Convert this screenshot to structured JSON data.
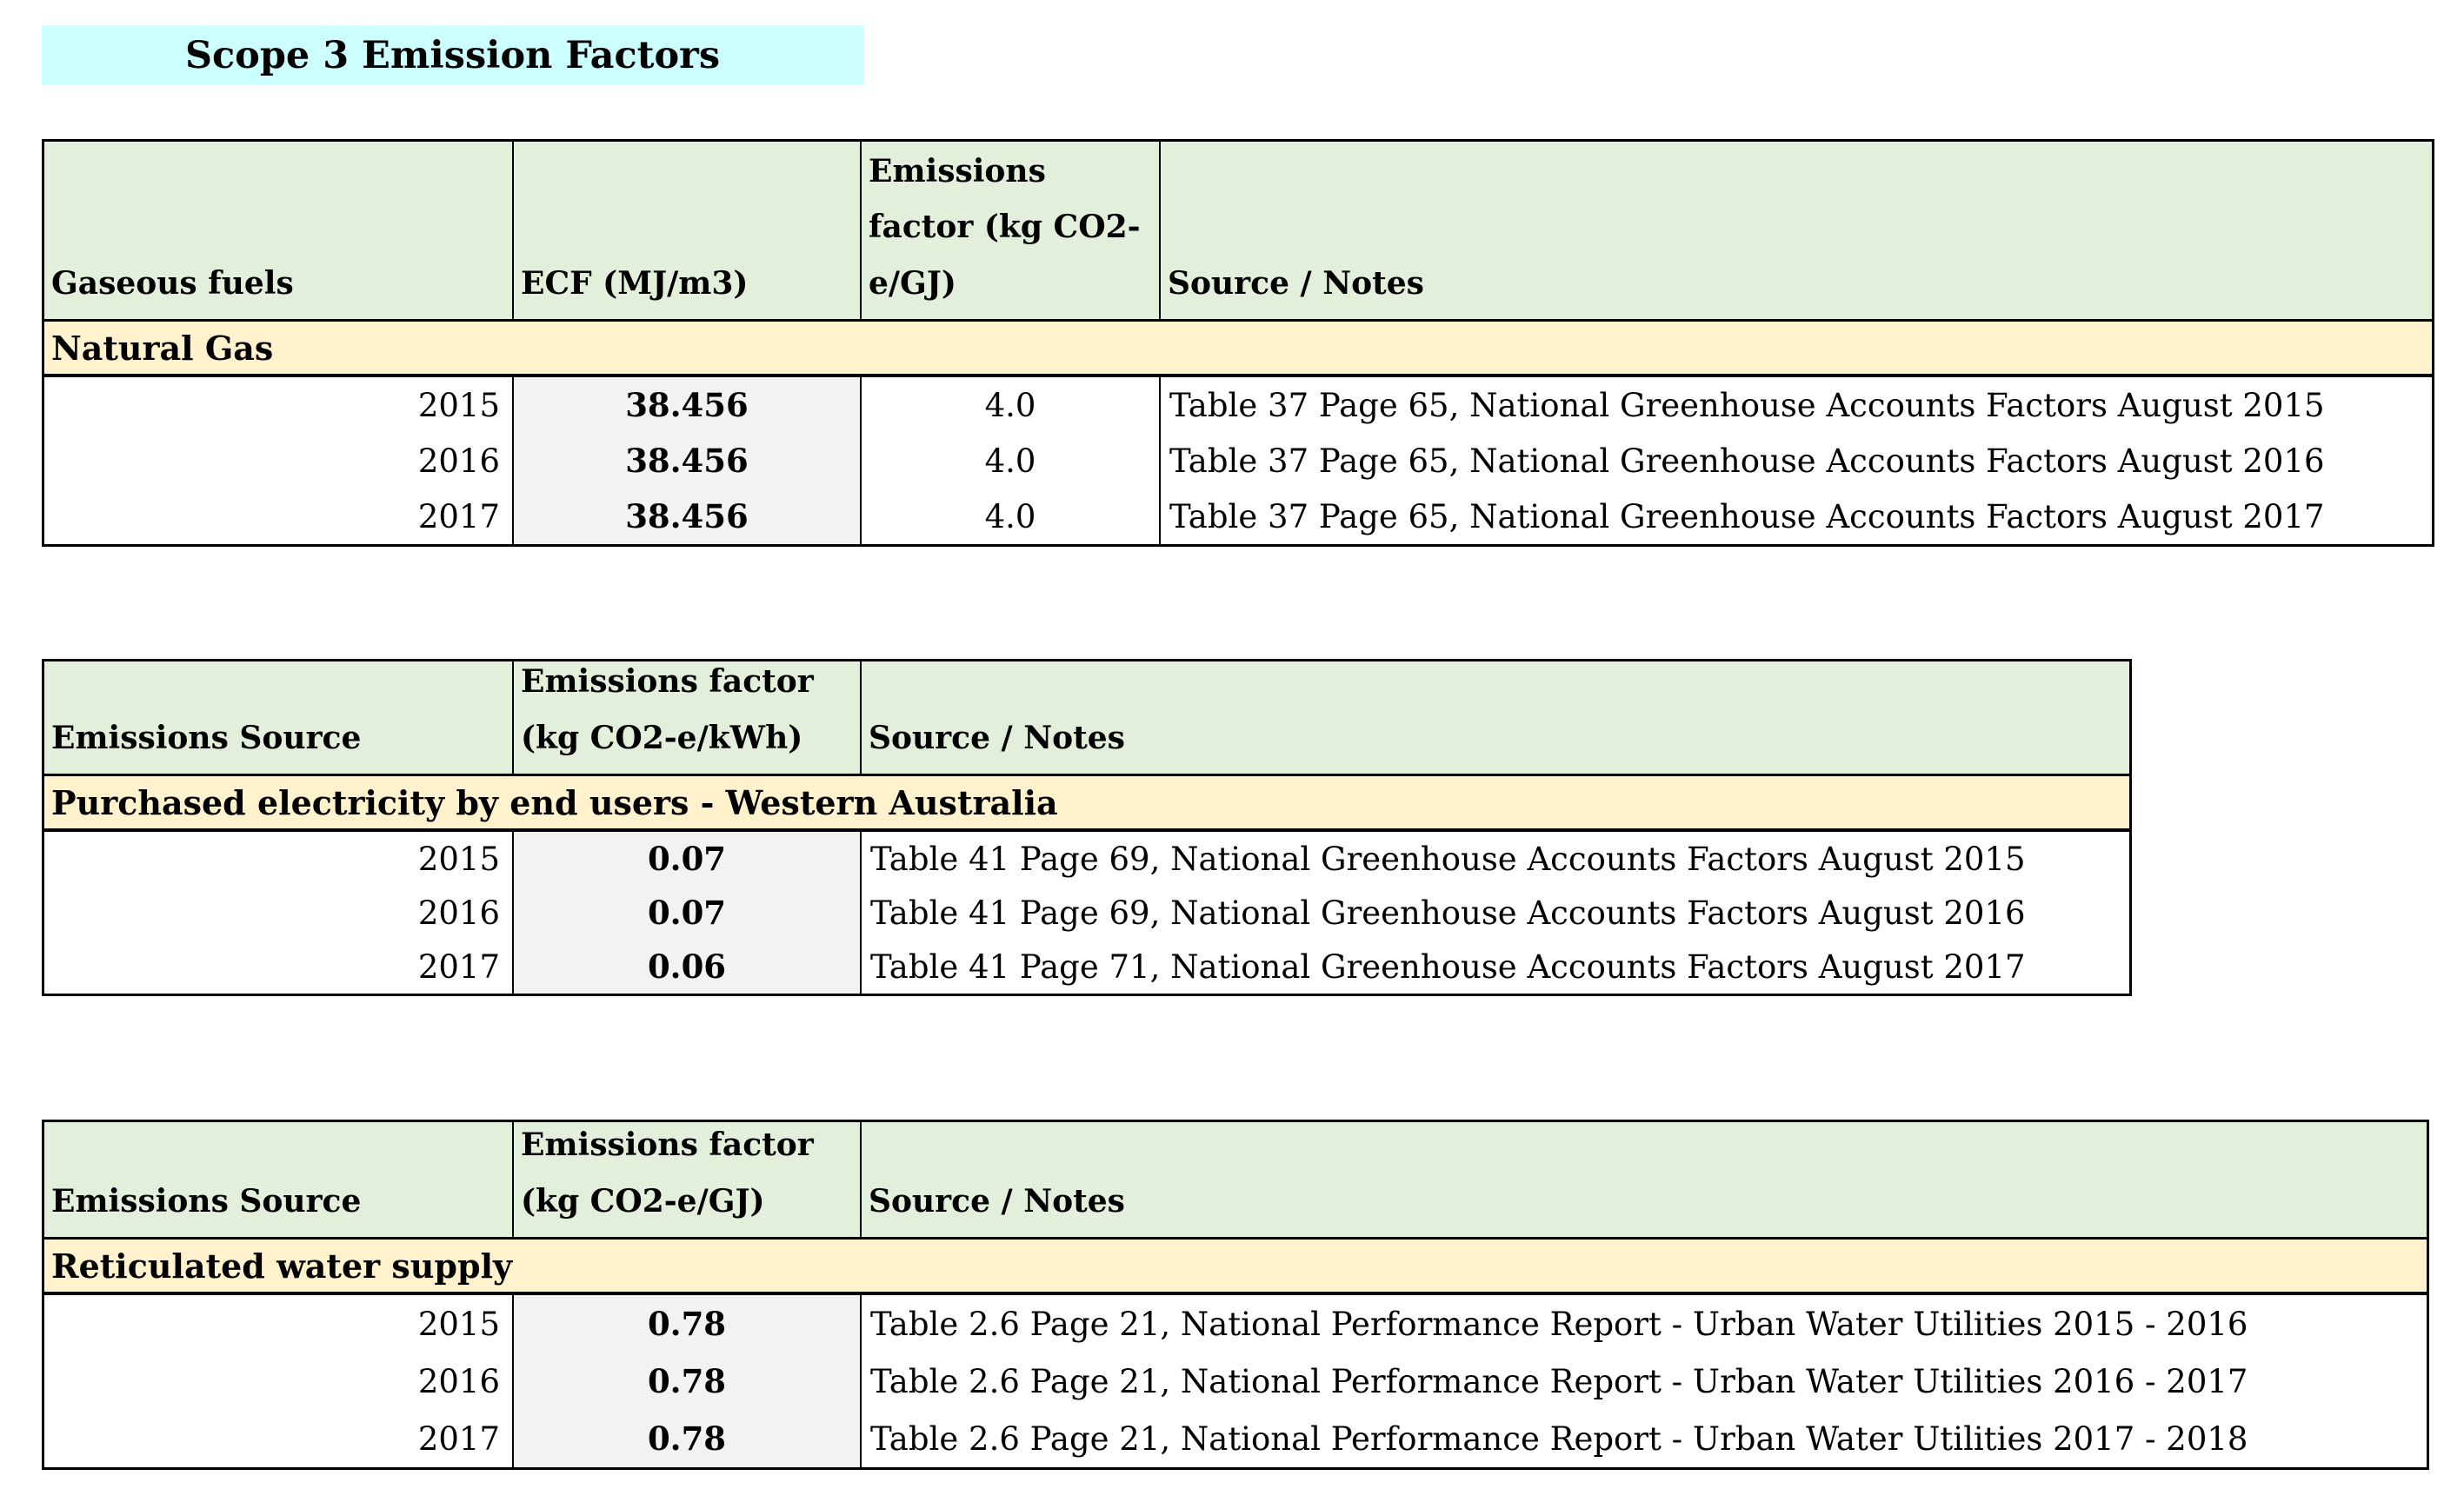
{
  "title": {
    "text": "Scope 3 Emission Factors"
  },
  "colors": {
    "title_highlight": "#ccffff",
    "header_bg": "#e2efda",
    "section_row_bg": "#fff2cc",
    "factor_column_bg": "#f2f2f2",
    "border": "#000000",
    "text": "#000000"
  },
  "tables": [
    {
      "name": "gaseous-fuels",
      "headers": {
        "c1": "Gaseous fuels",
        "c2": "ECF (MJ/m3)",
        "c3": "Emissions\nfactor (kg CO2-\ne/GJ)",
        "c4": "Source / Notes"
      },
      "subheader": "Natural Gas",
      "rows": [
        {
          "year": "2015",
          "ecf": "38.456",
          "ef": "4.0",
          "source": "Table 37 Page 65, National Greenhouse Accounts Factors August 2015"
        },
        {
          "year": "2016",
          "ecf": "38.456",
          "ef": "4.0",
          "source": "Table 37 Page 65, National Greenhouse Accounts Factors August 2016"
        },
        {
          "year": "2017",
          "ecf": "38.456",
          "ef": "4.0",
          "source": "Table 37 Page 65, National Greenhouse Accounts Factors August 2017"
        }
      ]
    },
    {
      "name": "purchased-electricity",
      "headers": {
        "c1": "Emissions Source",
        "c2": "Emissions factor\n(kg CO2-e/kWh)",
        "c3": "Source / Notes"
      },
      "subheader": "Purchased electricity by end users  - Western Australia",
      "rows": [
        {
          "year": "2015",
          "ef": "0.07",
          "source": "Table 41 Page 69, National Greenhouse Accounts Factors August 2015"
        },
        {
          "year": "2016",
          "ef": "0.07",
          "source": "Table 41 Page 69, National Greenhouse Accounts Factors August 2016"
        },
        {
          "year": "2017",
          "ef": "0.06",
          "source": "Table 41 Page 71, National Greenhouse Accounts Factors August 2017"
        }
      ]
    },
    {
      "name": "reticulated-water",
      "headers": {
        "c1": "Emissions Source",
        "c2": "Emissions factor\n(kg CO2-e/GJ)",
        "c3": "Source / Notes"
      },
      "subheader": "Reticulated water supply",
      "rows": [
        {
          "year": "2015",
          "ef": "0.78",
          "source": "Table 2.6 Page 21, National Performance Report - Urban Water Utilities 2015 - 2016"
        },
        {
          "year": "2016",
          "ef": "0.78",
          "source": "Table 2.6 Page 21, National Performance Report - Urban Water Utilities 2016 - 2017"
        },
        {
          "year": "2017",
          "ef": "0.78",
          "source": "Table 2.6 Page 21, National Performance Report - Urban Water Utilities 2017 - 2018"
        }
      ]
    }
  ]
}
